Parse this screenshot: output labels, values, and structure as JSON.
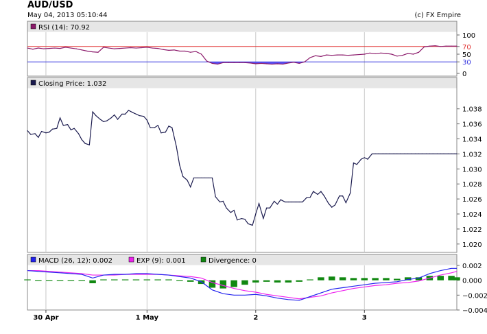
{
  "header": {
    "title": "AUD/USD",
    "datetime": "May 04, 2013 05:10:44",
    "credit": "(c) FX Empire"
  },
  "colors": {
    "rsi": "#8b1a6b",
    "rsi_fill": "#5b4ff0",
    "price": "#1a1a4e",
    "macd": "#2222ee",
    "exp": "#ee22ee",
    "divergence": "#118811",
    "level70": "#e03030",
    "level30": "#3030e0",
    "grid": "#c8c8c8",
    "header_bg": "#e6e6e6"
  },
  "x_axis": {
    "ticks": [
      {
        "label": "30 Apr",
        "t": 0.07
      },
      {
        "label": "1 May",
        "t": 1.0
      },
      {
        "label": "2",
        "t": 2.0
      },
      {
        "label": "3",
        "t": 3.0
      }
    ],
    "range": [
      -0.1,
      3.85
    ]
  },
  "chart_data": [
    {
      "type": "line",
      "name": "rsi",
      "legend": "RSI (14): 70.92",
      "ylim": [
        0,
        100
      ],
      "yticks": [
        "100",
        "70",
        "50",
        "30",
        "0"
      ],
      "ytick_values": [
        100,
        70,
        50,
        30,
        0
      ],
      "levels": [
        70,
        30
      ],
      "x": [
        -0.1,
        -0.05,
        0,
        0.05,
        0.1,
        0.15,
        0.2,
        0.25,
        0.3,
        0.35,
        0.4,
        0.45,
        0.5,
        0.55,
        0.6,
        0.65,
        0.7,
        0.75,
        0.8,
        0.85,
        0.9,
        0.95,
        1.0,
        1.05,
        1.1,
        1.15,
        1.2,
        1.25,
        1.3,
        1.35,
        1.4,
        1.45,
        1.5,
        1.55,
        1.6,
        1.65,
        1.7,
        1.75,
        1.8,
        1.85,
        1.9,
        1.95,
        2.0,
        2.05,
        2.1,
        2.15,
        2.2,
        2.25,
        2.3,
        2.35,
        2.4,
        2.45,
        2.5,
        2.55,
        2.6,
        2.65,
        2.7,
        2.75,
        2.8,
        2.85,
        2.9,
        2.95,
        3.0,
        3.05,
        3.1,
        3.15,
        3.2,
        3.25,
        3.3,
        3.35,
        3.4,
        3.45,
        3.5,
        3.55,
        3.6,
        3.65,
        3.7,
        3.75,
        3.8,
        3.85
      ],
      "y": [
        66,
        63,
        66,
        64,
        65,
        66,
        65,
        68,
        66,
        64,
        61,
        58,
        56,
        55,
        68,
        66,
        64,
        65,
        66,
        67,
        66,
        67,
        68,
        66,
        65,
        62,
        60,
        61,
        58,
        58,
        55,
        57,
        50,
        32,
        26,
        24,
        28,
        28,
        28,
        28,
        28,
        27,
        25,
        26,
        25,
        24,
        25,
        24,
        27,
        29,
        26,
        30,
        41,
        46,
        44,
        48,
        47,
        48,
        48,
        47,
        48,
        49,
        50,
        53,
        51,
        53,
        52,
        50,
        45,
        47,
        52,
        50,
        55,
        69,
        71,
        72,
        70,
        71,
        71,
        71
      ]
    },
    {
      "type": "line",
      "name": "closing-price",
      "legend": "Closing Price: 1.032",
      "ylim": [
        1.0198,
        1.0398
      ],
      "yticks": [
        "1.038",
        "1.036",
        "1.034",
        "1.032",
        "1.030",
        "1.028",
        "1.026",
        "1.024",
        "1.022",
        "1.020"
      ],
      "ytick_values": [
        1.038,
        1.036,
        1.034,
        1.032,
        1.03,
        1.028,
        1.026,
        1.024,
        1.022,
        1.02
      ],
      "x": [
        -0.1,
        -0.07,
        -0.03,
        0,
        0.03,
        0.07,
        0.1,
        0.13,
        0.17,
        0.2,
        0.23,
        0.27,
        0.3,
        0.33,
        0.37,
        0.4,
        0.43,
        0.47,
        0.5,
        0.53,
        0.57,
        0.6,
        0.63,
        0.67,
        0.7,
        0.73,
        0.77,
        0.8,
        0.83,
        0.87,
        0.9,
        0.93,
        0.97,
        1.0,
        1.03,
        1.07,
        1.1,
        1.13,
        1.17,
        1.2,
        1.23,
        1.27,
        1.3,
        1.33,
        1.37,
        1.4,
        1.43,
        1.47,
        1.5,
        1.53,
        1.57,
        1.6,
        1.63,
        1.67,
        1.7,
        1.73,
        1.77,
        1.8,
        1.83,
        1.87,
        1.9,
        1.93,
        1.97,
        2.0,
        2.03,
        2.07,
        2.1,
        2.13,
        2.17,
        2.2,
        2.23,
        2.27,
        2.3,
        2.33,
        2.37,
        2.4,
        2.43,
        2.47,
        2.5,
        2.53,
        2.57,
        2.6,
        2.63,
        2.67,
        2.7,
        2.73,
        2.77,
        2.8,
        2.83,
        2.87,
        2.9,
        2.93,
        2.97,
        3.0,
        3.03,
        3.07,
        3.1,
        3.13,
        3.17,
        3.2,
        3.23,
        3.27,
        3.3,
        3.33,
        3.37,
        3.4,
        3.43,
        3.47,
        3.5,
        3.53,
        3.57,
        3.6,
        3.63,
        3.67,
        3.7,
        3.73,
        3.77,
        3.8,
        3.83,
        3.85
      ],
      "y": [
        1.0351,
        1.0346,
        1.0347,
        1.0342,
        1.035,
        1.0348,
        1.0349,
        1.0353,
        1.0354,
        1.0368,
        1.0358,
        1.0359,
        1.0352,
        1.0354,
        1.0347,
        1.0339,
        1.0334,
        1.0332,
        1.0376,
        1.0371,
        1.0366,
        1.0363,
        1.0364,
        1.0368,
        1.0372,
        1.0366,
        1.0373,
        1.0373,
        1.0378,
        1.0375,
        1.0373,
        1.0371,
        1.037,
        1.0365,
        1.0355,
        1.0355,
        1.0358,
        1.0348,
        1.0349,
        1.0357,
        1.0355,
        1.033,
        1.0305,
        1.029,
        1.0285,
        1.0276,
        1.0288,
        1.0288,
        1.0288,
        1.0288,
        1.0288,
        1.0288,
        1.0263,
        1.0256,
        1.0257,
        1.0248,
        1.0242,
        1.0245,
        1.0232,
        1.0234,
        1.0233,
        1.0227,
        1.0225,
        1.024,
        1.0254,
        1.0234,
        1.0248,
        1.0248,
        1.0257,
        1.0253,
        1.0259,
        1.0256,
        1.0256,
        1.0256,
        1.0256,
        1.0256,
        1.0256,
        1.0262,
        1.0262,
        1.027,
        1.0266,
        1.027,
        1.0264,
        1.0254,
        1.0249,
        1.0252,
        1.0264,
        1.0264,
        1.0255,
        1.0268,
        1.0308,
        1.0306,
        1.0313,
        1.0315,
        1.0313,
        1.032,
        1.032,
        1.032,
        1.032,
        1.032,
        1.032,
        1.032,
        1.032,
        1.032,
        1.032,
        1.032,
        1.032,
        1.032,
        1.032,
        1.032,
        1.032,
        1.032,
        1.032,
        1.032,
        1.032,
        1.032,
        1.032,
        1.032,
        1.032,
        1.032
      ]
    },
    {
      "type": "line",
      "name": "macd",
      "legend": [
        {
          "label": "MACD (26, 12): 0.002",
          "key": "macd"
        },
        {
          "label": "EXP (9): 0.001",
          "key": "exp"
        },
        {
          "label": "Divergence: 0",
          "key": "divergence"
        }
      ],
      "ylim": [
        -0.004,
        0.002
      ],
      "yticks": [
        "0.002",
        "0.000",
        "−0.002",
        "−0.004"
      ],
      "ytick_values": [
        0.002,
        0.0,
        -0.002,
        -0.004
      ],
      "x": [
        -0.1,
        0,
        0.1,
        0.2,
        0.3,
        0.4,
        0.5,
        0.6,
        0.7,
        0.8,
        0.9,
        1.0,
        1.1,
        1.2,
        1.3,
        1.4,
        1.5,
        1.6,
        1.7,
        1.8,
        1.9,
        2.0,
        2.1,
        2.2,
        2.3,
        2.4,
        2.5,
        2.6,
        2.7,
        2.8,
        2.9,
        3.0,
        3.1,
        3.2,
        3.3,
        3.4,
        3.5,
        3.6,
        3.7,
        3.8,
        3.85
      ],
      "series": [
        {
          "key": "macd",
          "y": [
            0.0013,
            0.0012,
            0.0011,
            0.001,
            0.0009,
            0.0008,
            0.0003,
            0.0007,
            0.0008,
            0.0008,
            0.0009,
            0.0009,
            0.0008,
            0.0007,
            0.0005,
            0.0003,
            -0.0002,
            -0.0013,
            -0.0018,
            -0.002,
            -0.002,
            -0.0019,
            -0.0021,
            -0.0024,
            -0.0026,
            -0.0027,
            -0.0022,
            -0.0017,
            -0.0012,
            -0.001,
            -0.0008,
            -0.0006,
            -0.0004,
            -0.0003,
            -0.0002,
            0.0001,
            0.0003,
            0.0009,
            0.0013,
            0.0016,
            0.0016
          ]
        },
        {
          "key": "exp",
          "y": [
            0.0013,
            0.0013,
            0.0012,
            0.0011,
            0.001,
            0.0009,
            0.0007,
            0.0007,
            0.0007,
            0.0008,
            0.0008,
            0.0008,
            0.0008,
            0.0007,
            0.0006,
            0.0005,
            0.0003,
            -0.0003,
            -0.0007,
            -0.0011,
            -0.0014,
            -0.0016,
            -0.0019,
            -0.0021,
            -0.0023,
            -0.0025,
            -0.0023,
            -0.0021,
            -0.0017,
            -0.0014,
            -0.0011,
            -0.0009,
            -0.0007,
            -0.0006,
            -0.0004,
            -0.0003,
            -0.0001,
            0.0003,
            0.0007,
            0.001,
            0.0012
          ]
        },
        {
          "key": "divergence",
          "y": [
            0.0,
            -0.0001,
            -0.0001,
            -0.0001,
            -0.0001,
            -0.0001,
            -0.0004,
            0.0,
            0.0001,
            0.0,
            0.0001,
            0.0001,
            0.0,
            0.0,
            -0.0001,
            -0.0002,
            -0.0005,
            -0.001,
            -0.0011,
            -0.0009,
            -0.0006,
            -0.0003,
            -0.0002,
            -0.0003,
            -0.0003,
            -0.0002,
            0.0001,
            0.0004,
            0.0005,
            0.0004,
            0.0003,
            0.0003,
            0.0003,
            0.0003,
            0.0002,
            0.0004,
            0.0004,
            0.0006,
            0.0006,
            0.0006,
            0.0004
          ]
        }
      ]
    }
  ]
}
